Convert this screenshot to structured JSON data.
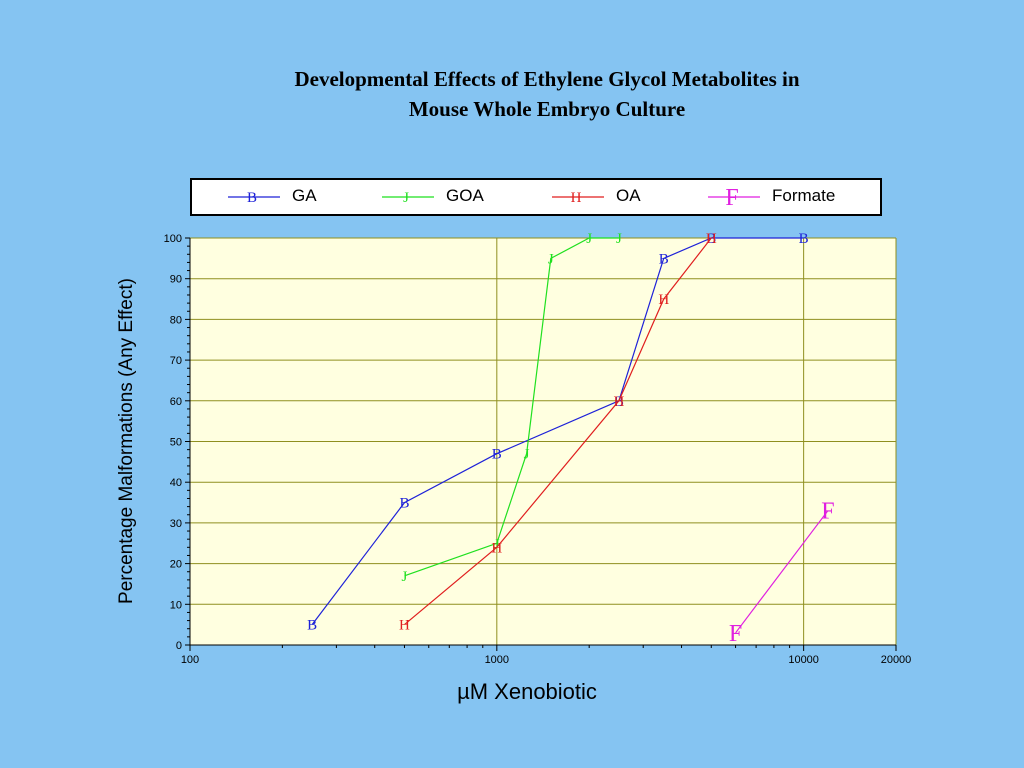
{
  "slide": {
    "title_line1": "Developmental Effects of Ethylene Glycol Metabolites in",
    "title_line2": "Mouse Whole Embryo Culture"
  },
  "chart_data": {
    "type": "line",
    "title": "Developmental Effects of Ethylene Glycol Metabolites in Mouse Whole Embryo Culture",
    "xlabel": "µM Xenobiotic",
    "ylabel": "Percentage Malformations (Any Effect)",
    "x_scale": "log",
    "xlim": [
      100,
      20000
    ],
    "ylim": [
      0,
      100
    ],
    "x_ticks": [
      100,
      1000,
      10000,
      20000
    ],
    "x_tick_labels": [
      "100",
      "1000",
      "10000",
      "20000"
    ],
    "y_ticks": [
      0,
      10,
      20,
      30,
      40,
      50,
      60,
      70,
      80,
      90,
      100
    ],
    "y_tick_labels": [
      "0",
      "10",
      "20",
      "30",
      "40",
      "50",
      "60",
      "70",
      "80",
      "90",
      "100"
    ],
    "grid": true,
    "legend_position": "top",
    "plot_background": "#ffffe0",
    "grid_color": "#8f8f1f",
    "series": [
      {
        "name": "GA",
        "marker": "B",
        "color": "#1e22d8",
        "x": [
          250,
          500,
          1000,
          2500,
          3500,
          5000,
          10000
        ],
        "y": [
          5,
          35,
          47,
          60,
          95,
          100,
          100
        ]
      },
      {
        "name": "GOA",
        "marker": "J",
        "color": "#1fe01f",
        "x": [
          500,
          1000,
          1250,
          1500,
          2000,
          2500
        ],
        "y": [
          17,
          25,
          47,
          95,
          100,
          100
        ]
      },
      {
        "name": "OA",
        "marker": "H",
        "color": "#e01f1f",
        "x": [
          500,
          1000,
          2500,
          3500,
          5000
        ],
        "y": [
          5,
          24,
          60,
          85,
          100
        ]
      },
      {
        "name": "Formate",
        "marker": "F",
        "color": "#e01fe0",
        "x": [
          6000,
          12000
        ],
        "y": [
          3,
          33
        ]
      }
    ]
  }
}
